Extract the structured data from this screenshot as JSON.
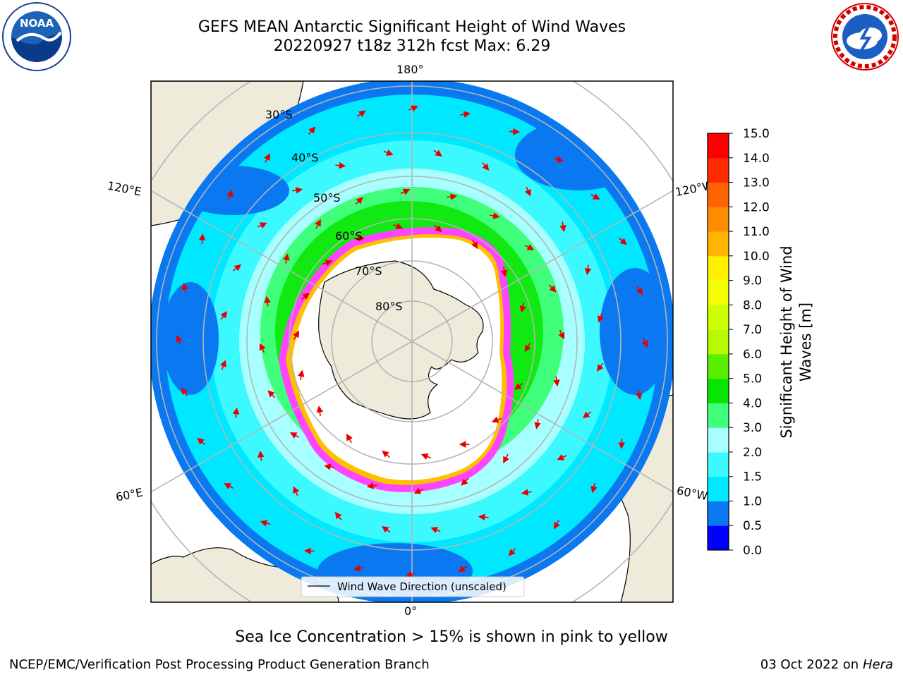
{
  "header": {
    "title_line1": "GEFS MEAN Antarctic Significant Height of Wind Waves",
    "title_line2": "20220927 t18z 312h fcst   Max: 6.29"
  },
  "logos": {
    "left": {
      "icon": "noaa-logo-icon",
      "text": "NOAA"
    },
    "right": {
      "icon": "national-weather-service-logo-icon",
      "text": "NATIONAL WEATHER SERVICE"
    }
  },
  "map": {
    "projection": "south-polar-stereographic",
    "longitude_labels": {
      "top": "180°",
      "bottom": "0°",
      "upper_left": "120°E",
      "upper_right": "120°W",
      "lower_left": "60°E",
      "lower_right": "60°W"
    },
    "latitude_labels": [
      "30°S",
      "40°S",
      "50°S",
      "60°S",
      "70°S",
      "80°S"
    ],
    "legend_label": "Wind Wave Direction (unscaled)",
    "colors": {
      "land": "#eeebdb",
      "graticule": "#b5b5b5",
      "arrows": "#e60000",
      "ice_edge": [
        "#ff44ff",
        "#ffc000",
        "#ffff66"
      ]
    }
  },
  "colorbar": {
    "label": "Significant Height of Wind Waves [m]",
    "ticks": [
      "0.0",
      "0.5",
      "1.0",
      "1.5",
      "2.0",
      "3.0",
      "4.0",
      "5.0",
      "6.0",
      "7.0",
      "8.0",
      "9.0",
      "10.0",
      "11.0",
      "12.0",
      "13.0",
      "14.0",
      "15.0"
    ],
    "colors": [
      "#0000ff",
      "#0a78f0",
      "#00e8ff",
      "#3cf8ff",
      "#a8ffff",
      "#40ff7a",
      "#08e600",
      "#58f000",
      "#b8f800",
      "#ccff00",
      "#f4ff00",
      "#fff000",
      "#ffb400",
      "#ff8c00",
      "#ff6400",
      "#ff2a00",
      "#ff0000"
    ]
  },
  "caption": "Sea Ice Concentration > 15% is shown in pink to yellow",
  "footer": {
    "left": "NCEP/EMC/Verification Post Processing Product Generation Branch",
    "right_prefix": "03 Oct 2022 on ",
    "right_machine": "Hera"
  }
}
